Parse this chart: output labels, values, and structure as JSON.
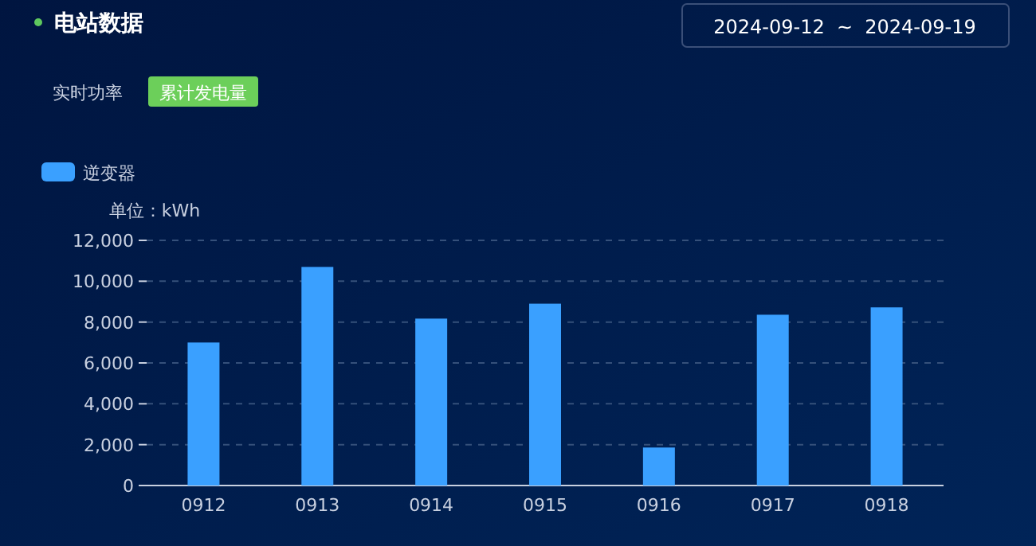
{
  "chart_data": {
    "type": "bar",
    "title": "电站数据",
    "subtitle": "2024-09-12  ~  2024-09-19",
    "annotations": [
      "实时功率",
      "累计发电量"
    ],
    "ylabel": "单位：kWh",
    "categories": [
      "0912",
      "0913",
      "0914",
      "0915",
      "0916",
      "0917",
      "0918"
    ],
    "series": [
      {
        "name": "逆变器",
        "color": "#3aa0ff",
        "values": [
          7000,
          10700,
          8170,
          8900,
          1860,
          8360,
          8720
        ]
      }
    ],
    "ylim": [
      0,
      12000
    ],
    "yticks": [
      {
        "value": 0,
        "label": "0"
      },
      {
        "value": 2000,
        "label": "2,000"
      },
      {
        "value": 4000,
        "label": "4,000"
      },
      {
        "value": 6000,
        "label": "6,000"
      },
      {
        "value": 8000,
        "label": "8,000"
      },
      {
        "value": 10000,
        "label": "10,000"
      },
      {
        "value": 12000,
        "label": "12,000"
      }
    ],
    "grid": "y",
    "legend": "top left"
  }
}
